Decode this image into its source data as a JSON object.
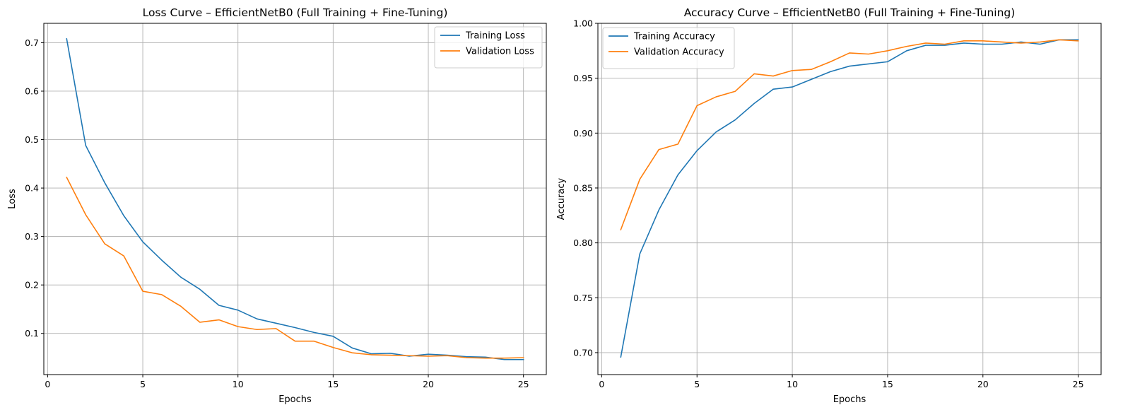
{
  "colors": {
    "training": "#1f77b4",
    "validation": "#ff7f0e",
    "grid": "#b0b0b0"
  },
  "chart_data": [
    {
      "type": "line",
      "title": "Loss Curve – EfficientNetB0 (Full Training + Fine-Tuning)",
      "xlabel": "Epochs",
      "ylabel": "Loss",
      "xlim": [
        -0.2,
        26.2
      ],
      "ylim": [
        0.015,
        0.74
      ],
      "xticks": [
        0,
        5,
        10,
        15,
        20,
        25
      ],
      "xtick_labels": [
        "0",
        "5",
        "10",
        "15",
        "20",
        "25"
      ],
      "yticks": [
        0.1,
        0.2,
        0.3,
        0.4,
        0.5,
        0.6,
        0.7
      ],
      "ytick_labels": [
        "0.1",
        "0.2",
        "0.3",
        "0.4",
        "0.5",
        "0.6",
        "0.7"
      ],
      "grid": true,
      "legend_position": "top-right",
      "x": [
        1,
        2,
        3,
        4,
        5,
        6,
        7,
        8,
        9,
        10,
        11,
        12,
        13,
        14,
        15,
        16,
        17,
        18,
        19,
        20,
        21,
        22,
        23,
        24,
        25
      ],
      "series": [
        {
          "name": "Training Loss",
          "color": "#1f77b4",
          "values": [
            0.708,
            0.488,
            0.411,
            0.343,
            0.289,
            0.251,
            0.216,
            0.191,
            0.158,
            0.148,
            0.13,
            0.121,
            0.112,
            0.102,
            0.094,
            0.07,
            0.058,
            0.059,
            0.053,
            0.057,
            0.055,
            0.052,
            0.051,
            0.046,
            0.046
          ]
        },
        {
          "name": "Validation Loss",
          "color": "#ff7f0e",
          "values": [
            0.422,
            0.345,
            0.285,
            0.26,
            0.187,
            0.18,
            0.156,
            0.123,
            0.128,
            0.114,
            0.108,
            0.11,
            0.084,
            0.084,
            0.071,
            0.06,
            0.056,
            0.055,
            0.054,
            0.053,
            0.054,
            0.05,
            0.049,
            0.049,
            0.05
          ]
        }
      ]
    },
    {
      "type": "line",
      "title": "Accuracy Curve – EfficientNetB0 (Full Training + Fine-Tuning)",
      "xlabel": "Epochs",
      "ylabel": "Accuracy",
      "xlim": [
        -0.2,
        26.2
      ],
      "ylim": [
        0.68,
        1.0
      ],
      "xticks": [
        0,
        5,
        10,
        15,
        20,
        25
      ],
      "xtick_labels": [
        "0",
        "5",
        "10",
        "15",
        "20",
        "25"
      ],
      "yticks": [
        0.7,
        0.75,
        0.8,
        0.85,
        0.9,
        0.95,
        1.0
      ],
      "ytick_labels": [
        "0.70",
        "0.75",
        "0.80",
        "0.85",
        "0.90",
        "0.95",
        "1.00"
      ],
      "grid": true,
      "legend_position": "top-left",
      "x": [
        1,
        2,
        3,
        4,
        5,
        6,
        7,
        8,
        9,
        10,
        11,
        12,
        13,
        14,
        15,
        16,
        17,
        18,
        19,
        20,
        21,
        22,
        23,
        24,
        25
      ],
      "series": [
        {
          "name": "Training Accuracy",
          "color": "#1f77b4",
          "values": [
            0.696,
            0.79,
            0.83,
            0.862,
            0.884,
            0.901,
            0.912,
            0.927,
            0.94,
            0.942,
            0.949,
            0.956,
            0.961,
            0.963,
            0.965,
            0.975,
            0.98,
            0.98,
            0.982,
            0.981,
            0.981,
            0.983,
            0.981,
            0.985,
            0.985
          ]
        },
        {
          "name": "Validation Accuracy",
          "color": "#ff7f0e",
          "values": [
            0.812,
            0.858,
            0.885,
            0.89,
            0.925,
            0.933,
            0.938,
            0.954,
            0.952,
            0.957,
            0.958,
            0.965,
            0.973,
            0.972,
            0.975,
            0.979,
            0.982,
            0.981,
            0.984,
            0.984,
            0.983,
            0.982,
            0.983,
            0.985,
            0.984
          ]
        }
      ]
    }
  ]
}
